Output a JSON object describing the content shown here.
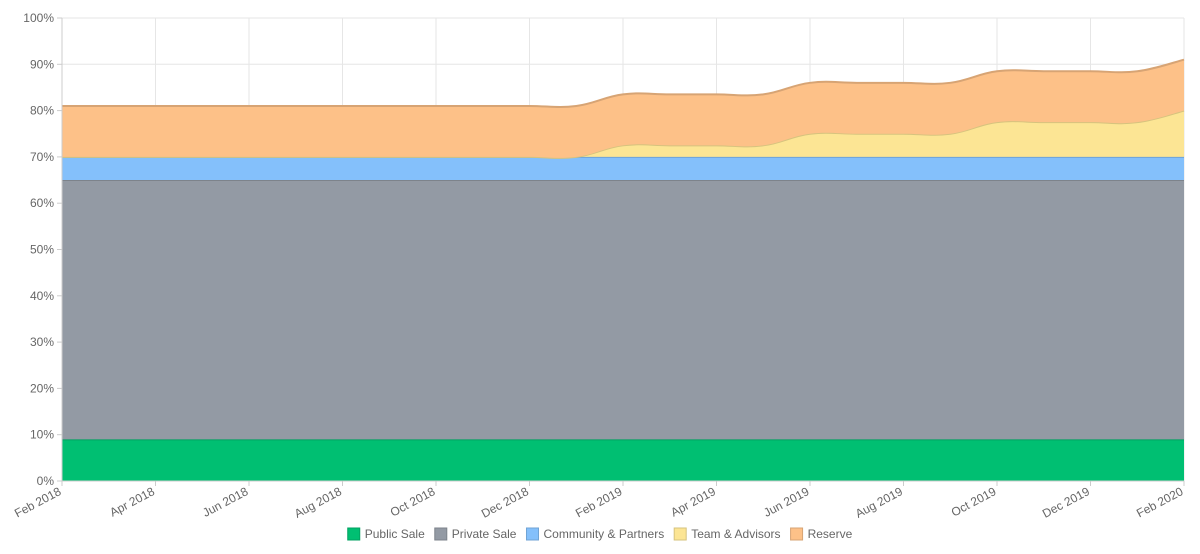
{
  "chart_data": {
    "type": "area",
    "stacked": true,
    "x": [
      "Feb 2018",
      "Mar 2018",
      "Apr 2018",
      "May 2018",
      "Jun 2018",
      "Jul 2018",
      "Aug 2018",
      "Sep 2018",
      "Oct 2018",
      "Nov 2018",
      "Dec 2018",
      "Jan 2019",
      "Feb 2019",
      "Mar 2019",
      "Apr 2019",
      "May 2019",
      "Jun 2019",
      "Jul 2019",
      "Aug 2019",
      "Sep 2019",
      "Oct 2019",
      "Nov 2019",
      "Dec 2019",
      "Jan 2020",
      "Feb 2020"
    ],
    "x_tick_labels": [
      "Feb 2018",
      "Apr 2018",
      "Jun 2018",
      "Aug 2018",
      "Oct 2018",
      "Dec 2018",
      "Feb 2019",
      "Apr 2019",
      "Jun 2019",
      "Aug 2019",
      "Oct 2019",
      "Dec 2019",
      "Feb 2020"
    ],
    "y_tick_labels": [
      "0%",
      "10%",
      "20%",
      "30%",
      "40%",
      "50%",
      "60%",
      "70%",
      "80%",
      "90%",
      "100%"
    ],
    "ylim": [
      0,
      100
    ],
    "y_unit": "%",
    "grid": true,
    "legend_position": "bottom",
    "series": [
      {
        "name": "Public Sale",
        "color": "#00bf72",
        "values": [
          9,
          9,
          9,
          9,
          9,
          9,
          9,
          9,
          9,
          9,
          9,
          9,
          9,
          9,
          9,
          9,
          9,
          9,
          9,
          9,
          9,
          9,
          9,
          9,
          9
        ]
      },
      {
        "name": "Private Sale",
        "color": "#939aa4",
        "values": [
          56,
          56,
          56,
          56,
          56,
          56,
          56,
          56,
          56,
          56,
          56,
          56,
          56,
          56,
          56,
          56,
          56,
          56,
          56,
          56,
          56,
          56,
          56,
          56,
          56
        ]
      },
      {
        "name": "Community & Partners",
        "color": "#84c0fb",
        "values": [
          5,
          5,
          5,
          5,
          5,
          5,
          5,
          5,
          5,
          5,
          5,
          5,
          5,
          5,
          5,
          5,
          5,
          5,
          5,
          5,
          5,
          5,
          5,
          5,
          5
        ]
      },
      {
        "name": "Team & Advisors",
        "color": "#fce594",
        "values": [
          0,
          0,
          0,
          0,
          0,
          0,
          0,
          0,
          0,
          0,
          0,
          0,
          2.5,
          2.5,
          2.5,
          2.5,
          5,
          5,
          5,
          5,
          7.5,
          7.5,
          7.5,
          7.5,
          10
        ]
      },
      {
        "name": "Reserve",
        "color": "#fdc188",
        "values": [
          11,
          11,
          11,
          11,
          11,
          11,
          11,
          11,
          11,
          11,
          11,
          11,
          11,
          11,
          11,
          11,
          11,
          11,
          11,
          11,
          11,
          11,
          11,
          11,
          11
        ]
      }
    ]
  }
}
